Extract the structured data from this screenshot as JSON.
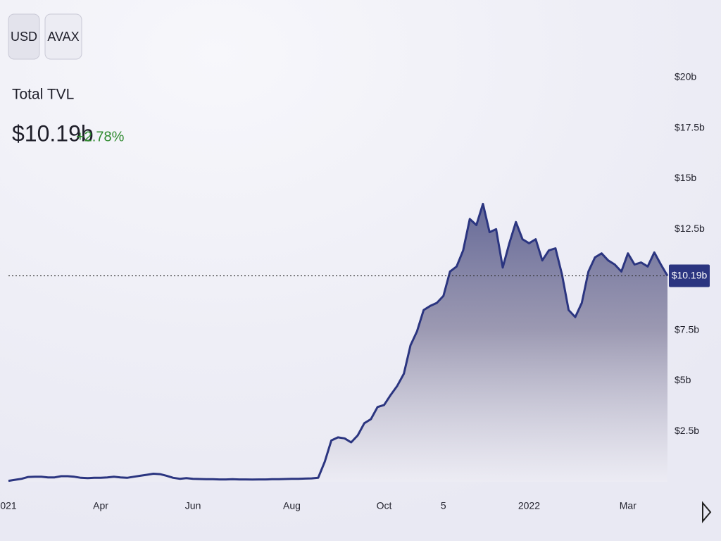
{
  "controls": {
    "buttons": [
      "USD",
      "AVAX"
    ]
  },
  "header": {
    "title": "Total TVL",
    "value": "$10.19b",
    "change": "+2.78%"
  },
  "chart_data": {
    "type": "area",
    "categories": [
      "021",
      null,
      null,
      null,
      null,
      null,
      null,
      null,
      null,
      null,
      null,
      null,
      null,
      null,
      "Apr",
      null,
      null,
      null,
      null,
      null,
      null,
      null,
      null,
      null,
      null,
      null,
      null,
      null,
      "Jun",
      null,
      null,
      null,
      null,
      null,
      null,
      null,
      null,
      null,
      null,
      null,
      null,
      null,
      null,
      "Aug",
      null,
      null,
      null,
      null,
      null,
      null,
      null,
      null,
      null,
      null,
      null,
      null,
      null,
      "Oct",
      null,
      null,
      null,
      null,
      null,
      null,
      null,
      null,
      "5",
      null,
      null,
      null,
      null,
      null,
      null,
      null,
      null,
      null,
      null,
      null,
      null,
      "2022",
      null,
      null,
      null,
      null,
      null,
      null,
      null,
      null,
      null,
      null,
      null,
      null,
      null,
      null,
      "Mar",
      null,
      null,
      null,
      null,
      null,
      null
    ],
    "values": [
      0.05,
      0.1,
      0.15,
      0.24,
      0.25,
      0.25,
      0.22,
      0.22,
      0.28,
      0.28,
      0.25,
      0.2,
      0.18,
      0.2,
      0.2,
      0.22,
      0.25,
      0.22,
      0.2,
      0.25,
      0.3,
      0.35,
      0.4,
      0.38,
      0.3,
      0.2,
      0.15,
      0.18,
      0.15,
      0.14,
      0.13,
      0.13,
      0.12,
      0.12,
      0.13,
      0.12,
      0.12,
      0.11,
      0.12,
      0.12,
      0.13,
      0.13,
      0.14,
      0.15,
      0.15,
      0.16,
      0.17,
      0.2,
      1.0,
      2.05,
      2.2,
      2.15,
      1.95,
      2.3,
      2.9,
      3.1,
      3.7,
      3.8,
      4.3,
      4.75,
      5.35,
      6.75,
      7.45,
      8.5,
      8.7,
      8.85,
      9.2,
      10.4,
      10.65,
      11.45,
      13.0,
      12.7,
      13.75,
      12.35,
      12.5,
      10.6,
      11.8,
      12.85,
      12.0,
      11.8,
      12.0,
      10.95,
      11.45,
      11.55,
      10.25,
      8.5,
      8.15,
      8.85,
      10.4,
      11.1,
      11.3,
      10.95,
      10.75,
      10.4,
      11.3,
      10.75,
      10.85,
      10.65,
      11.35,
      10.75,
      10.19
    ],
    "color": "#2b3580",
    "ylim": [
      0,
      20
    ],
    "yticks": [
      {
        "value": 2.5,
        "label": "$2.5b"
      },
      {
        "value": 5,
        "label": "$5b"
      },
      {
        "value": 7.5,
        "label": "$7.5b"
      },
      {
        "value": 12.5,
        "label": "$12.5b"
      },
      {
        "value": 15,
        "label": "$15b"
      },
      {
        "value": 17.5,
        "label": "$17.5b"
      },
      {
        "value": 20,
        "label": "$20b"
      }
    ],
    "grid": false,
    "current_value": 10.19,
    "current_value_label": "$10.19b"
  }
}
